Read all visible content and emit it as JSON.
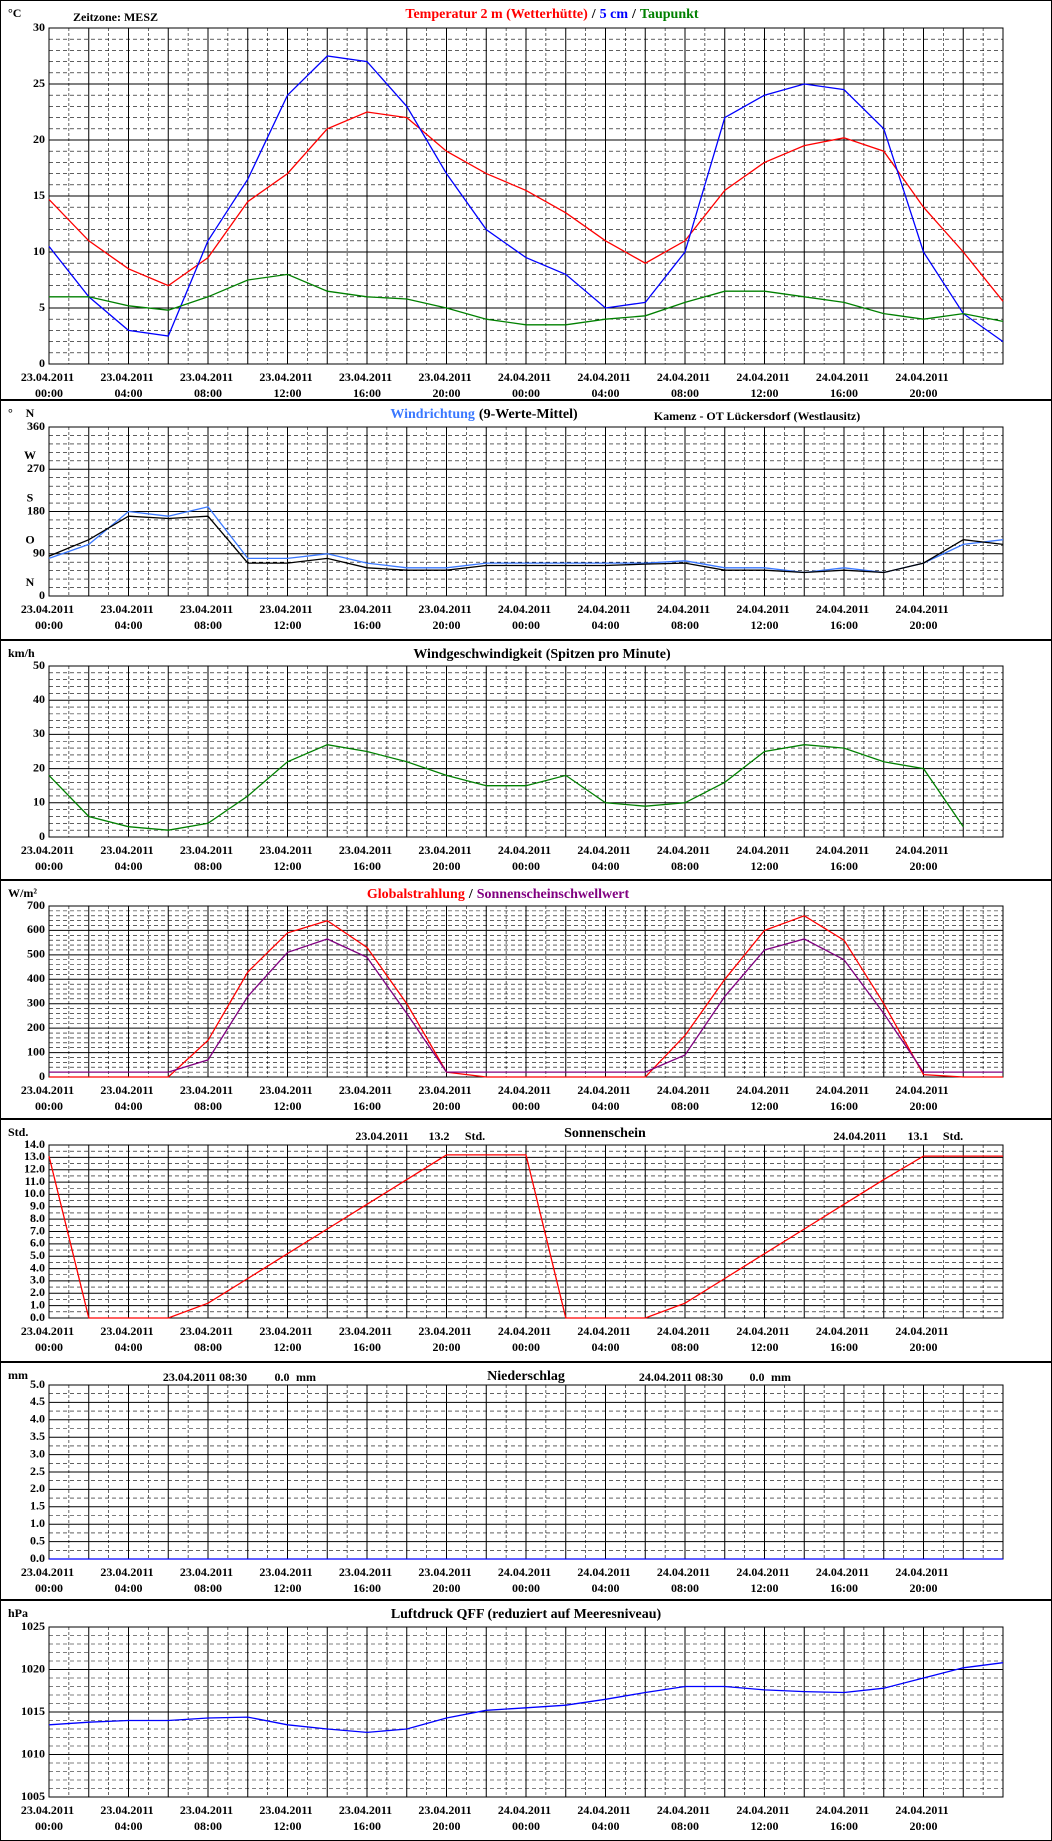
{
  "chart_data": [
    {
      "type": "line",
      "unit": "°C",
      "annotations": [
        "Zeitzone: MESZ"
      ],
      "legend_separator": "/",
      "grid": true,
      "categories": [
        "23.04.2011 00:00",
        null,
        "23.04.2011 04:00",
        null,
        "23.04.2011 08:00",
        null,
        "23.04.2011 12:00",
        null,
        "23.04.2011 16:00",
        null,
        "23.04.2011 20:00",
        null,
        "24.04.2011 00:00",
        null,
        "24.04.2011 04:00",
        null,
        "24.04.2011 08:00",
        null,
        "24.04.2011 12:00",
        null,
        "24.04.2011 16:00",
        null,
        "24.04.2011 20:00",
        null,
        null
      ],
      "ylim": [
        0,
        30
      ],
      "yticks": [
        0,
        5,
        10,
        15,
        20,
        25,
        30
      ],
      "series": [
        {
          "name": "Temperatur 2 m (Wetterhütte)",
          "color": "#ff0000",
          "values": [
            14.7,
            11,
            8.5,
            7,
            9.5,
            14.5,
            17,
            21,
            22.5,
            22,
            19,
            17,
            15.5,
            13.5,
            11,
            9,
            11,
            15.5,
            18,
            19.5,
            20.2,
            19,
            14,
            10,
            5.6
          ]
        },
        {
          "name": "5 cm",
          "color": "#0000ff",
          "values": [
            10.5,
            6,
            3,
            2.5,
            11,
            16.5,
            24,
            27.5,
            27,
            23,
            17,
            12,
            9.5,
            8,
            5,
            5.5,
            10,
            22,
            24,
            25,
            24.5,
            21,
            10,
            4.5,
            2
          ]
        },
        {
          "name": "Taupunkt",
          "color": "#008000",
          "values": [
            6,
            6,
            5.2,
            4.8,
            6,
            7.5,
            8,
            6.5,
            6,
            5.8,
            5,
            4,
            3.5,
            3.5,
            4,
            4.3,
            5.5,
            6.5,
            6.5,
            6,
            5.5,
            4.5,
            4,
            4.5,
            3.8
          ]
        }
      ]
    },
    {
      "type": "line",
      "unit": "°",
      "compass": [
        "N",
        "O",
        "S",
        "W",
        "N"
      ],
      "annotations": [
        "Kamenz - OT Lückersdorf (Westlausitz)"
      ],
      "grid": true,
      "categories": [
        "23.04.2011 00:00",
        null,
        "23.04.2011 04:00",
        null,
        "23.04.2011 08:00",
        null,
        "23.04.2011 12:00",
        null,
        "23.04.2011 16:00",
        null,
        "23.04.2011 20:00",
        null,
        "24.04.2011 00:00",
        null,
        "24.04.2011 04:00",
        null,
        "24.04.2011 08:00",
        null,
        "24.04.2011 12:00",
        null,
        "24.04.2011 16:00",
        null,
        "24.04.2011 20:00",
        null,
        null
      ],
      "ylim": [
        0,
        360
      ],
      "yticks": [
        0,
        90,
        180,
        270,
        360
      ],
      "series": [
        {
          "name": "Windrichtung",
          "color": "#3a78ff",
          "values": [
            80,
            110,
            180,
            170,
            190,
            80,
            80,
            90,
            70,
            60,
            60,
            70,
            70,
            70,
            70,
            70,
            75,
            60,
            60,
            50,
            60,
            50,
            70,
            110,
            120
          ]
        },
        {
          "name": "(9-Werte-Mittel)",
          "color": "#000000",
          "values": [
            85,
            120,
            170,
            165,
            170,
            70,
            70,
            80,
            60,
            55,
            55,
            65,
            65,
            65,
            65,
            68,
            70,
            55,
            55,
            50,
            55,
            50,
            70,
            120,
            110
          ]
        }
      ]
    },
    {
      "type": "line",
      "unit": "km/h",
      "title": "Windgeschwindigkeit (Spitzen pro Minute)",
      "grid": true,
      "categories": [
        "23.04.2011 00:00",
        null,
        "23.04.2011 04:00",
        null,
        "23.04.2011 08:00",
        null,
        "23.04.2011 12:00",
        null,
        "23.04.2011 16:00",
        null,
        "23.04.2011 20:00",
        null,
        "24.04.2011 00:00",
        null,
        "24.04.2011 04:00",
        null,
        "24.04.2011 08:00",
        null,
        "24.04.2011 12:00",
        null,
        "24.04.2011 16:00",
        null,
        "24.04.2011 20:00",
        null,
        null
      ],
      "ylim": [
        0,
        50
      ],
      "yticks": [
        0,
        10,
        20,
        30,
        40,
        50
      ],
      "series": [
        {
          "color": "#008000",
          "values": [
            18,
            6,
            3,
            2,
            4,
            12,
            22,
            27,
            25,
            22,
            18,
            15,
            15,
            18,
            10,
            9,
            10,
            16,
            25,
            27,
            26,
            22,
            20,
            3,
            null
          ]
        }
      ]
    },
    {
      "type": "line",
      "unit": "W/m²",
      "legend_separator": "/",
      "grid": true,
      "categories": [
        "23.04.2011 00:00",
        null,
        "23.04.2011 04:00",
        null,
        "23.04.2011 08:00",
        null,
        "23.04.2011 12:00",
        null,
        "23.04.2011 16:00",
        null,
        "23.04.2011 20:00",
        null,
        "24.04.2011 00:00",
        null,
        "24.04.2011 04:00",
        null,
        "24.04.2011 08:00",
        null,
        "24.04.2011 12:00",
        null,
        "24.04.2011 16:00",
        null,
        "24.04.2011 20:00",
        null,
        null
      ],
      "ylim": [
        0,
        700
      ],
      "yticks": [
        0,
        100,
        200,
        300,
        400,
        500,
        600,
        700
      ],
      "series": [
        {
          "name": "Globalstrahlung",
          "color": "#ff0000",
          "values": [
            0,
            0,
            0,
            0,
            150,
            430,
            590,
            640,
            530,
            300,
            20,
            0,
            0,
            0,
            0,
            0,
            170,
            400,
            600,
            660,
            560,
            300,
            10,
            0,
            0
          ]
        },
        {
          "name": "Sonnenscheinschwellwert",
          "color": "#800080",
          "values": [
            20,
            20,
            20,
            20,
            70,
            330,
            510,
            565,
            490,
            260,
            20,
            20,
            20,
            20,
            20,
            20,
            90,
            330,
            520,
            565,
            480,
            260,
            20,
            20,
            20
          ]
        }
      ]
    },
    {
      "type": "line",
      "unit": "Std.",
      "title": "Sonnenschein",
      "annotations": [
        "23.04.2011",
        "13.2",
        "Std.",
        "24.04.2011",
        "13.1",
        "Std."
      ],
      "grid": true,
      "categories": [
        "23.04.2011 00:00",
        null,
        "23.04.2011 04:00",
        null,
        "23.04.2011 08:00",
        null,
        "23.04.2011 12:00",
        null,
        "23.04.2011 16:00",
        null,
        "23.04.2011 20:00",
        null,
        "24.04.2011 00:00",
        null,
        "24.04.2011 04:00",
        null,
        "24.04.2011 08:00",
        null,
        "24.04.2011 12:00",
        null,
        "24.04.2011 16:00",
        null,
        "24.04.2011 20:00",
        null,
        null
      ],
      "ylim": [
        0,
        14
      ],
      "yticks": [
        {
          "value": 0,
          "label": "0.0"
        },
        {
          "value": 1,
          "label": "1.0"
        },
        {
          "value": 2,
          "label": "2.0"
        },
        {
          "value": 3,
          "label": "3.0"
        },
        {
          "value": 4,
          "label": "4.0"
        },
        {
          "value": 5,
          "label": "5.0"
        },
        {
          "value": 6,
          "label": "6.0"
        },
        {
          "value": 7,
          "label": "7.0"
        },
        {
          "value": 8,
          "label": "8.0"
        },
        {
          "value": 9,
          "label": "9.0"
        },
        {
          "value": 10,
          "label": "10.0"
        },
        {
          "value": 11,
          "label": "11.0"
        },
        {
          "value": 12,
          "label": "12.0"
        },
        {
          "value": 13,
          "label": "13.0"
        },
        {
          "value": 14,
          "label": "14.0"
        }
      ],
      "series": [
        {
          "color": "#ff0000",
          "values": [
            13.1,
            0,
            0,
            0,
            1.2,
            3.2,
            5.2,
            7.2,
            9.2,
            11.2,
            13.2,
            13.2,
            13.2,
            0,
            0,
            0,
            1.2,
            3.2,
            5.2,
            7.2,
            9.2,
            11.2,
            13.1,
            13.1,
            13.1
          ]
        }
      ]
    },
    {
      "type": "line",
      "unit": "mm",
      "title": "Niederschlag",
      "annotations": [
        "23.04.2011 08:30",
        "0.0",
        "mm",
        "24.04.2011 08:30",
        "0.0",
        "mm"
      ],
      "grid": true,
      "categories": [
        "23.04.2011 00:00",
        null,
        "23.04.2011 04:00",
        null,
        "23.04.2011 08:00",
        null,
        "23.04.2011 12:00",
        null,
        "23.04.2011 16:00",
        null,
        "23.04.2011 20:00",
        null,
        "24.04.2011 00:00",
        null,
        "24.04.2011 04:00",
        null,
        "24.04.2011 08:00",
        null,
        "24.04.2011 12:00",
        null,
        "24.04.2011 16:00",
        null,
        "24.04.2011 20:00",
        null,
        null
      ],
      "ylim": [
        0,
        5
      ],
      "yticks": [
        {
          "value": 0,
          "label": "0.0"
        },
        {
          "value": 0.5,
          "label": "0.5"
        },
        {
          "value": 1,
          "label": "1.0"
        },
        {
          "value": 1.5,
          "label": "1.5"
        },
        {
          "value": 2,
          "label": "2.0"
        },
        {
          "value": 2.5,
          "label": "2.5"
        },
        {
          "value": 3,
          "label": "3.0"
        },
        {
          "value": 3.5,
          "label": "3.5"
        },
        {
          "value": 4,
          "label": "4.0"
        },
        {
          "value": 4.5,
          "label": "4.5"
        },
        {
          "value": 5,
          "label": "5.0"
        }
      ],
      "series": [
        {
          "color": "#0000ff",
          "values": [
            0,
            0,
            0,
            0,
            0,
            0,
            0,
            0,
            0,
            0,
            0,
            0,
            0,
            0,
            0,
            0,
            0,
            0,
            0,
            0,
            0,
            0,
            0,
            0,
            0
          ]
        }
      ]
    },
    {
      "type": "line",
      "unit": "hPa",
      "title": "Luftdruck QFF (reduziert auf Meeresniveau)",
      "grid": true,
      "categories": [
        "23.04.2011 00:00",
        null,
        "23.04.2011 04:00",
        null,
        "23.04.2011 08:00",
        null,
        "23.04.2011 12:00",
        null,
        "23.04.2011 16:00",
        null,
        "23.04.2011 20:00",
        null,
        "24.04.2011 00:00",
        null,
        "24.04.2011 04:00",
        null,
        "24.04.2011 08:00",
        null,
        "24.04.2011 12:00",
        null,
        "24.04.2011 16:00",
        null,
        "24.04.2011 20:00",
        null,
        null
      ],
      "ylim": [
        1005,
        1025
      ],
      "yticks": [
        1005,
        1010,
        1015,
        1020,
        1025
      ],
      "series": [
        {
          "color": "#0000ff",
          "values": [
            1013.5,
            1013.8,
            1014,
            1014,
            1014.3,
            1014.4,
            1013.5,
            1013,
            1012.6,
            1013,
            1014.3,
            1015.2,
            1015.5,
            1015.8,
            1016.5,
            1017.3,
            1018,
            1018,
            1017.6,
            1017.4,
            1017.3,
            1017.8,
            1019,
            1020.2,
            1020.8
          ]
        }
      ]
    }
  ]
}
